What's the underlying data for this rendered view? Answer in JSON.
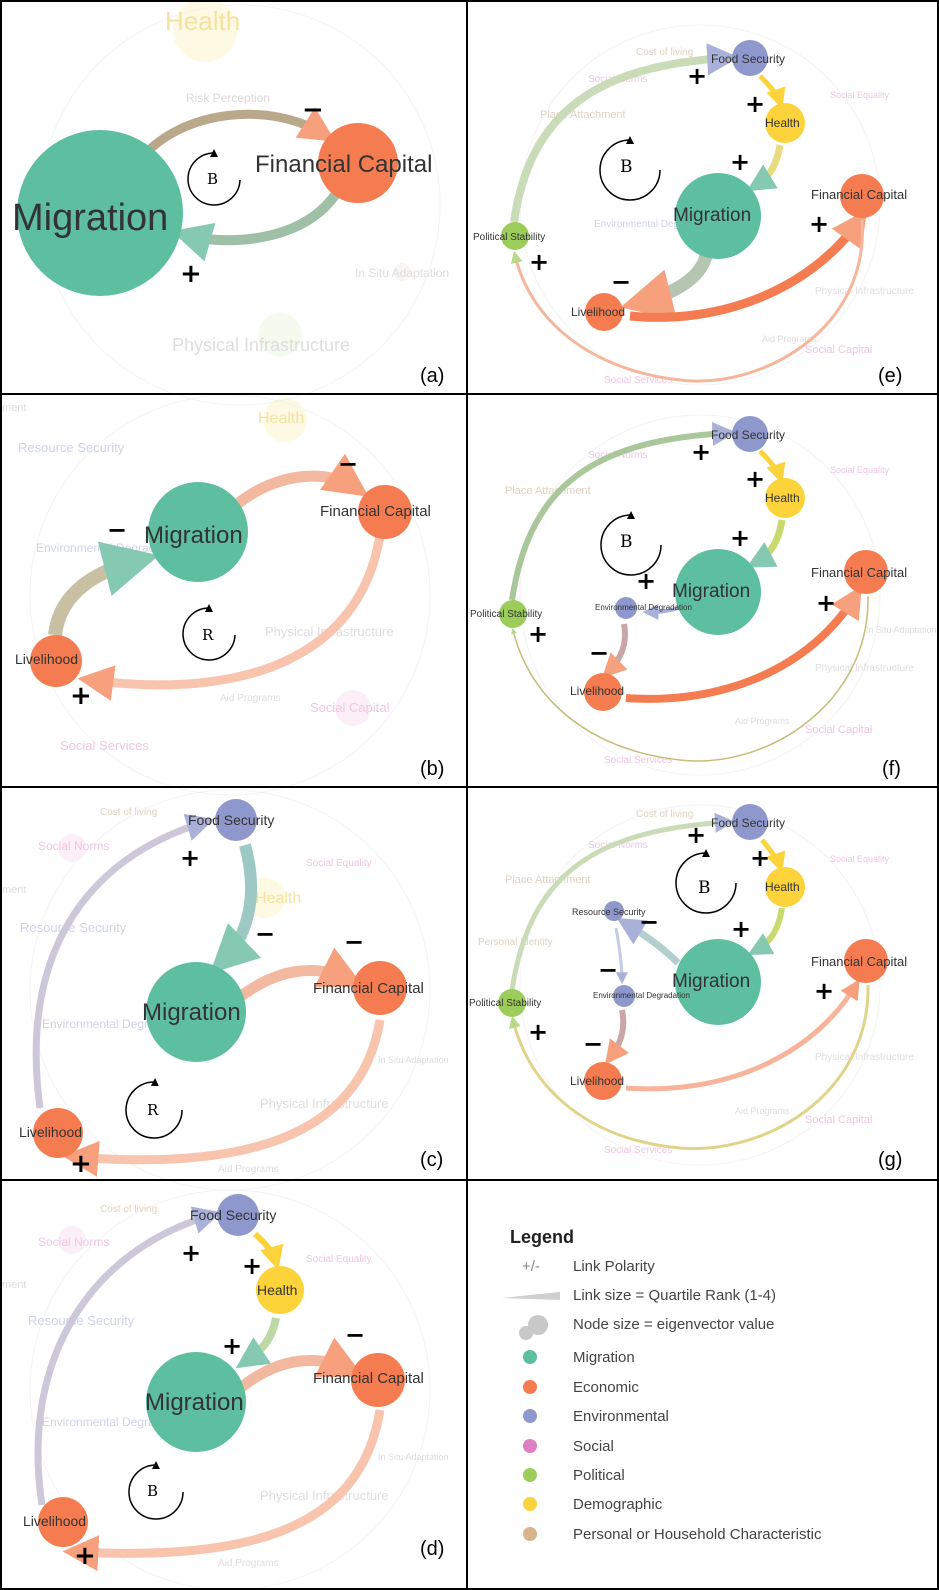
{
  "colors": {
    "migration": "#5dbf9f",
    "economic": "#f47c50",
    "environmental": "#8e98cc",
    "social": "#e07ec3",
    "political": "#9ccc5a",
    "demographic": "#fcd33a",
    "personal": "#d9b48a"
  },
  "background_labels": {
    "health": "Health",
    "risk_perception": "Risk Perception",
    "in_situ_adaptation": "In Situ Adaptation",
    "physical_infrastructure": "Physical Infrastructure",
    "resource_security": "Resource Security",
    "environmental_degradation": "Environmental Degradation",
    "aid_programs": "Aid Programs",
    "social_capital": "Social Capital",
    "social_services": "Social Services",
    "cost_of_living": "Cost of living",
    "social_norms": "Social Norms",
    "social_equality": "Social Equality",
    "place_attachment": "Place Attachment",
    "settlement": "ment",
    "personal_identity": "Personal Identity"
  },
  "panels": [
    {
      "label": "(a)",
      "loop_type": "B",
      "nodes": {
        "migration": "Migration",
        "financial_capital": "Financial Capital"
      },
      "polarities": [
        "−",
        "+"
      ]
    },
    {
      "label": "(b)",
      "loop_type": "R",
      "nodes": {
        "migration": "Migration",
        "financial_capital": "Financial Capital",
        "livelihood": "Livelihood"
      },
      "polarities": [
        "−",
        "−",
        "+"
      ]
    },
    {
      "label": "(c)",
      "loop_type": "R",
      "nodes": {
        "food_security": "Food Security",
        "migration": "Migration",
        "financial_capital": "Financial Capital",
        "livelihood": "Livelihood"
      },
      "polarities": [
        "+",
        "−",
        "−",
        "+"
      ]
    },
    {
      "label": "(d)",
      "loop_type": "B",
      "nodes": {
        "food_security": "Food Security",
        "health": "Health",
        "migration": "Migration",
        "financial_capital": "Financial Capital",
        "livelihood": "Livelihood"
      },
      "polarities": [
        "+",
        "+",
        "+",
        "−",
        "+"
      ]
    },
    {
      "label": "(e)",
      "loop_type": "B",
      "nodes": {
        "food_security": "Food Security",
        "health": "Health",
        "migration": "Migration",
        "financial_capital": "Financial Capital",
        "livelihood": "Livelihood",
        "political_stability": "Political Stability"
      },
      "polarities": [
        "+",
        "+",
        "+",
        "+",
        "−",
        "+"
      ]
    },
    {
      "label": "(f)",
      "loop_type": "B",
      "nodes": {
        "food_security": "Food Security",
        "health": "Health",
        "migration": "Migration",
        "financial_capital": "Financial Capital",
        "livelihood": "Livelihood",
        "political_stability": "Political Stability",
        "environmental_degradation": "Environmental Degradation"
      },
      "polarities": [
        "+",
        "+",
        "+",
        "+",
        "+",
        "−",
        "+"
      ]
    },
    {
      "label": "(g)",
      "loop_type": "B",
      "nodes": {
        "food_security": "Food Security",
        "health": "Health",
        "migration": "Migration",
        "financial_capital": "Financial Capital",
        "livelihood": "Livelihood",
        "political_stability": "Political Stability",
        "environmental_degradation": "Environmental Degradation",
        "resource_security": "Resource Security"
      },
      "polarities": [
        "+",
        "+",
        "+",
        "−",
        "−",
        "−",
        "+",
        "+"
      ]
    }
  ],
  "legend": {
    "title": "Legend",
    "polarity_symbol": "+/-",
    "items": [
      {
        "key": "link_polarity",
        "text": "Link Polarity"
      },
      {
        "key": "link_size",
        "text": "Link size = Quartile Rank (1-4)"
      },
      {
        "key": "node_size",
        "text": "Node size = eigenvector value"
      },
      {
        "key": "migration",
        "text": "Migration"
      },
      {
        "key": "economic",
        "text": "Economic"
      },
      {
        "key": "environmental",
        "text": "Environmental"
      },
      {
        "key": "social",
        "text": "Social"
      },
      {
        "key": "political",
        "text": "Political"
      },
      {
        "key": "demographic",
        "text": "Demographic"
      },
      {
        "key": "personal",
        "text": "Personal or Household Characteristic"
      }
    ]
  }
}
